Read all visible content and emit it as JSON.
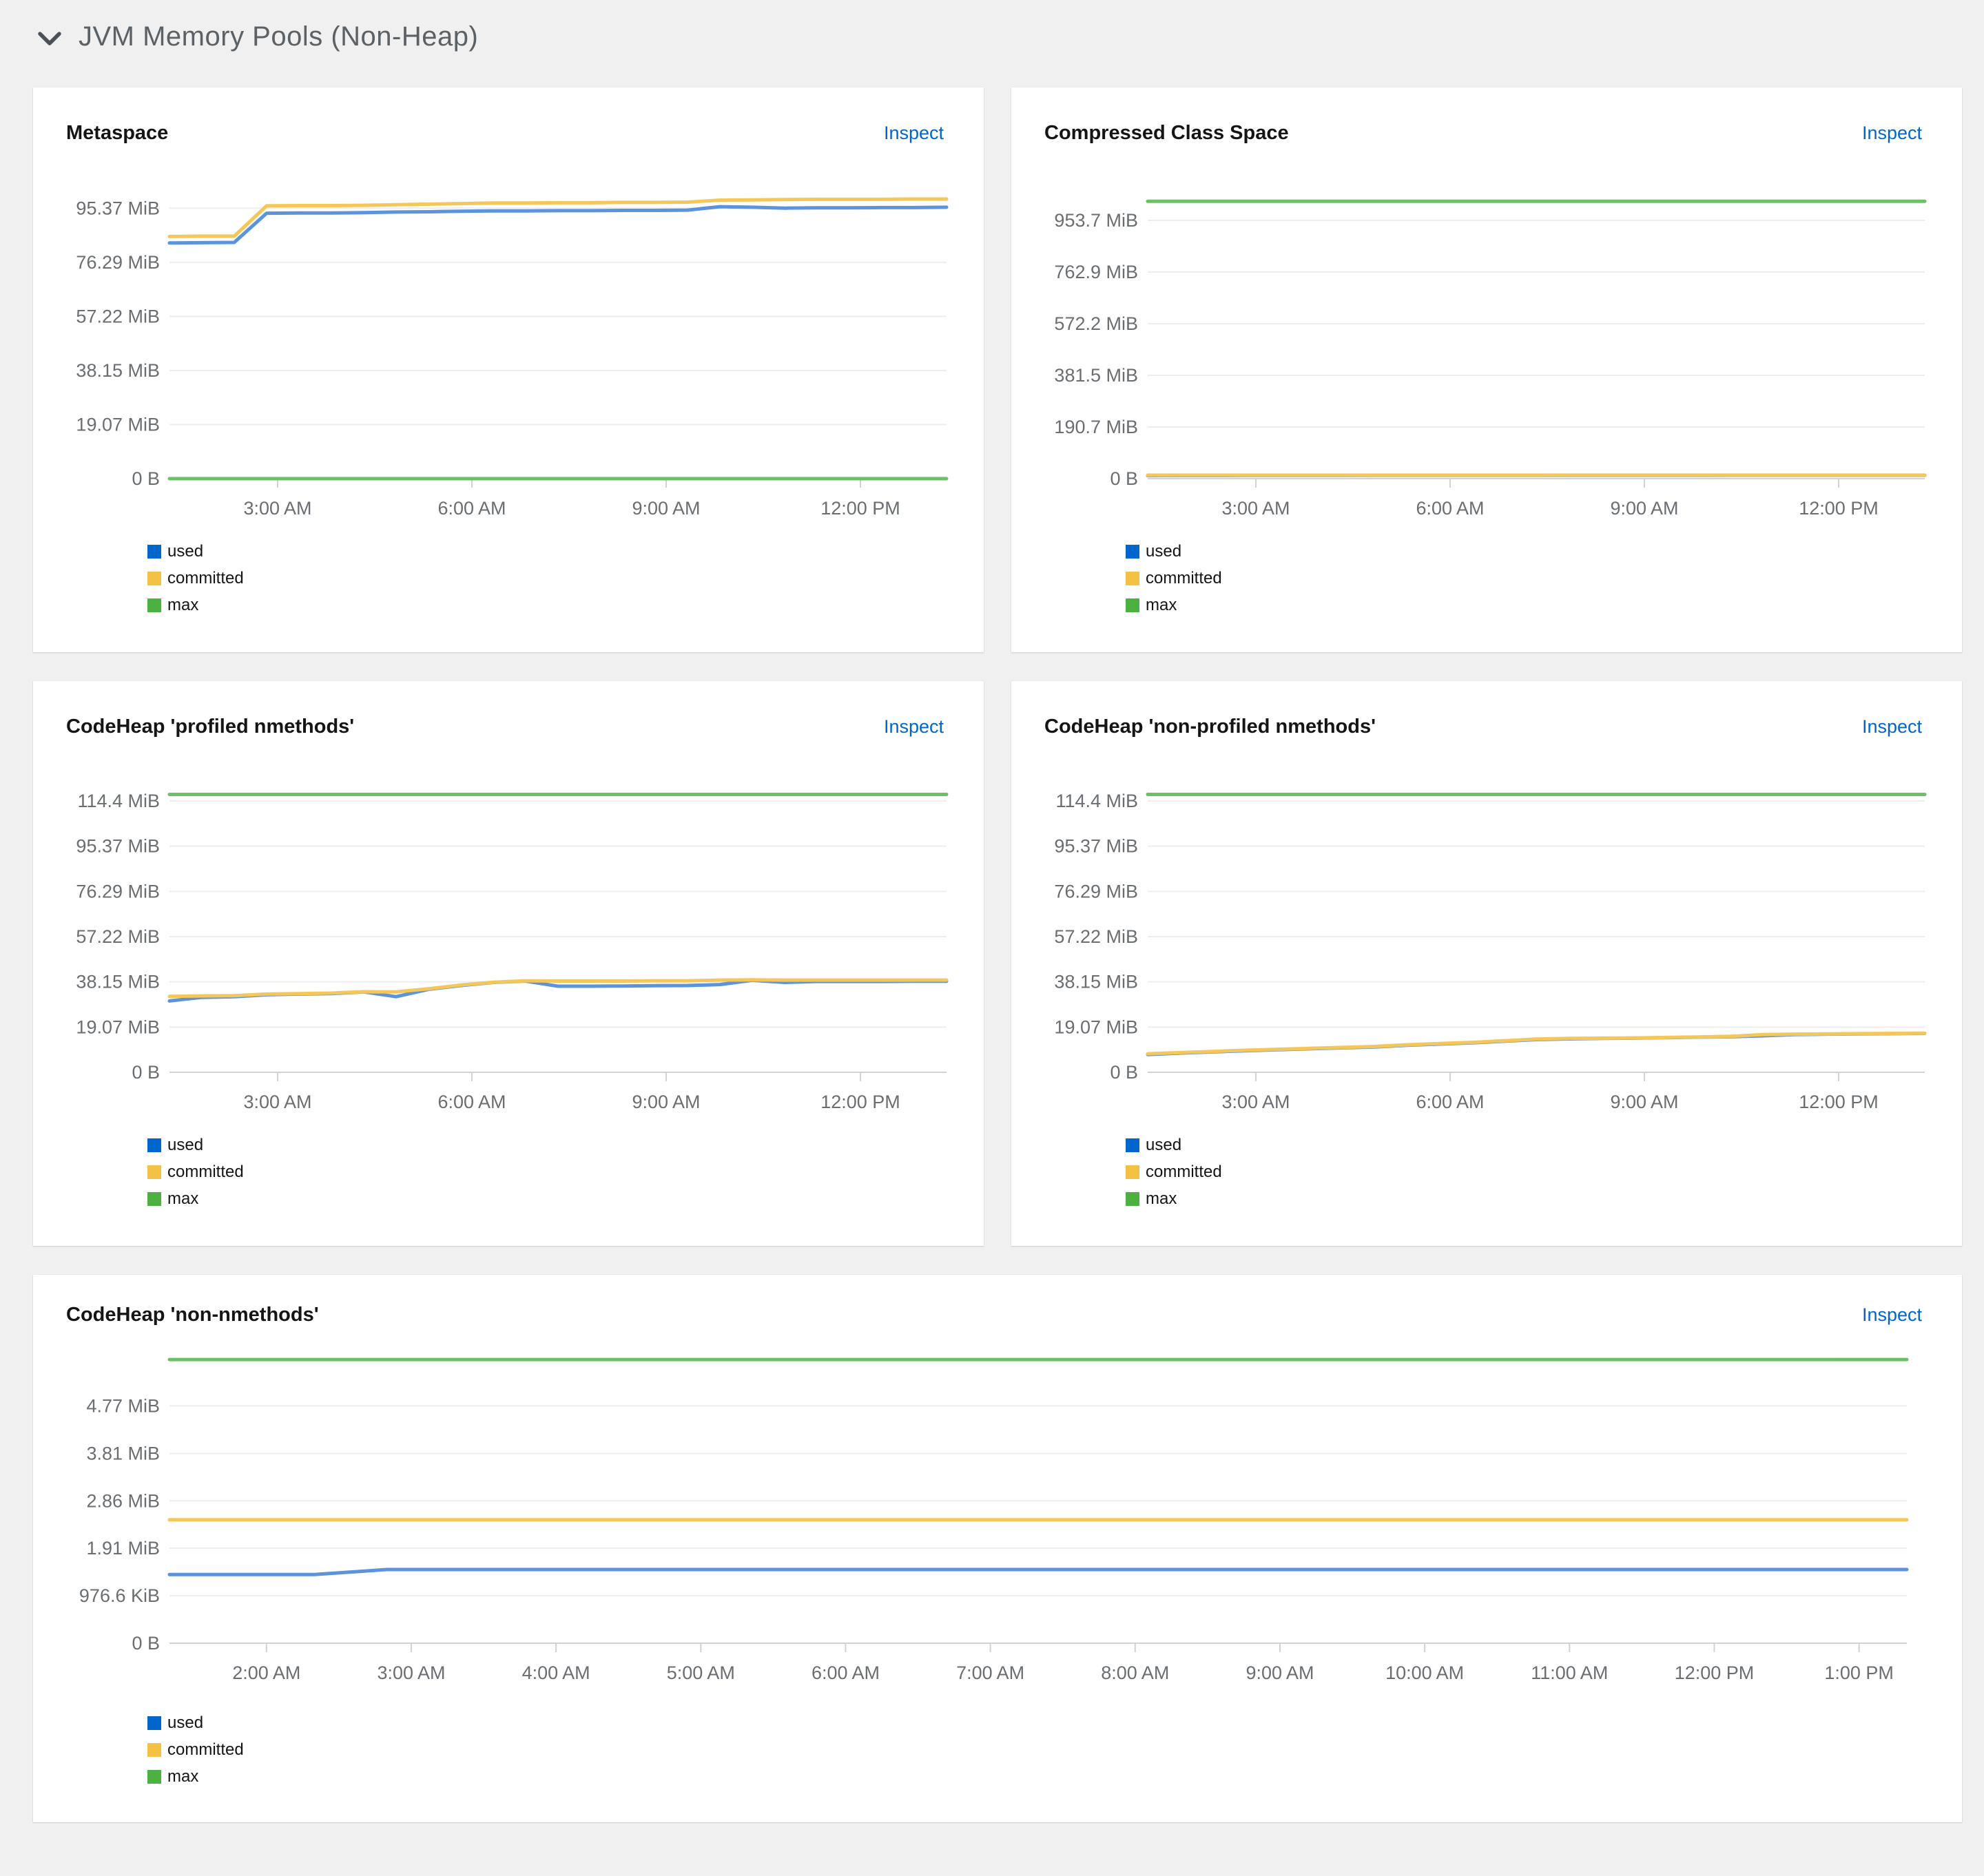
{
  "header": {
    "title": "JVM Memory Pools (Non-Heap)"
  },
  "inspect_label": "Inspect",
  "legend": [
    "used",
    "committed",
    "max"
  ],
  "colors": {
    "used_swatch": "#0066cc",
    "committed_swatch": "#f4c145",
    "max_swatch": "#4cb140",
    "used_line": "#5b93dd",
    "committed_line": "#f5c65a",
    "max_line": "#6cc067",
    "grid": "#ededed",
    "axis": "#d2d2d2",
    "axis_text": "#6a6e73",
    "link": "#0066cc"
  },
  "chart_data": [
    {
      "type": "line",
      "title": "Metaspace",
      "inspect_label": "Inspect",
      "unit": "MiB",
      "x_unit": "time-of-day hours",
      "x_range": [
        1.33,
        13.33
      ],
      "x_ticks": [
        {
          "label": "3:00 AM",
          "value": 3
        },
        {
          "label": "6:00 AM",
          "value": 6
        },
        {
          "label": "9:00 AM",
          "value": 9
        },
        {
          "label": "12:00 PM",
          "value": 12
        }
      ],
      "y_ticks": [
        {
          "label": "95.37 MiB",
          "value": 95.37
        },
        {
          "label": "76.29 MiB",
          "value": 76.29
        },
        {
          "label": "57.22 MiB",
          "value": 57.22
        },
        {
          "label": "38.15 MiB",
          "value": 38.15
        },
        {
          "label": "19.07 MiB",
          "value": 19.07
        },
        {
          "label": "0 B",
          "value": 0
        }
      ],
      "ymax": 102,
      "series": [
        {
          "name": "used",
          "values": [
            83.1,
            83.2,
            83.3,
            93.6,
            93.7,
            93.7,
            93.8,
            94.0,
            94.1,
            94.3,
            94.4,
            94.4,
            94.5,
            94.5,
            94.6,
            94.6,
            94.7,
            95.9,
            95.7,
            95.4,
            95.5,
            95.5,
            95.6,
            95.6,
            95.7
          ]
        },
        {
          "name": "committed",
          "values": [
            85.4,
            85.5,
            85.5,
            96.2,
            96.3,
            96.3,
            96.4,
            96.6,
            96.8,
            97.0,
            97.2,
            97.2,
            97.3,
            97.3,
            97.4,
            97.4,
            97.5,
            98.2,
            98.3,
            98.4,
            98.5,
            98.5,
            98.5,
            98.6,
            98.6
          ]
        },
        {
          "name": "max",
          "values": [
            0,
            0,
            0,
            0,
            0,
            0,
            0,
            0,
            0,
            0,
            0,
            0,
            0,
            0,
            0,
            0,
            0,
            0,
            0,
            0,
            0,
            0,
            0,
            0,
            0
          ]
        }
      ]
    },
    {
      "type": "line",
      "title": "Compressed Class Space",
      "inspect_label": "Inspect",
      "unit": "MiB",
      "x_unit": "time-of-day hours",
      "x_range": [
        1.33,
        13.33
      ],
      "x_ticks": [
        {
          "label": "3:00 AM",
          "value": 3
        },
        {
          "label": "6:00 AM",
          "value": 6
        },
        {
          "label": "9:00 AM",
          "value": 9
        },
        {
          "label": "12:00 PM",
          "value": 12
        }
      ],
      "y_ticks": [
        {
          "label": "953.7 MiB",
          "value": 953.7
        },
        {
          "label": "762.9 MiB",
          "value": 762.9
        },
        {
          "label": "572.2 MiB",
          "value": 572.2
        },
        {
          "label": "381.5 MiB",
          "value": 381.5
        },
        {
          "label": "190.7 MiB",
          "value": 190.7
        },
        {
          "label": "0 B",
          "value": 0
        }
      ],
      "ymax": 1068,
      "series": [
        {
          "name": "used",
          "values": [
            11.3,
            11.4,
            11.5,
            11.6,
            11.7,
            11.7,
            11.8,
            11.9,
            11.9,
            12.0,
            12.0,
            12.1,
            12.1,
            12.2,
            12.2,
            12.2,
            12.3,
            12.3,
            12.4,
            12.4,
            12.4,
            12.5,
            12.5,
            12.5,
            12.5
          ]
        },
        {
          "name": "committed",
          "values": [
            12.6,
            12.6,
            12.6,
            12.7,
            12.7,
            12.7,
            12.7,
            12.8,
            12.8,
            12.8,
            12.8,
            12.8,
            12.8,
            12.9,
            12.9,
            12.9,
            12.9,
            12.9,
            12.9,
            13.0,
            13.0,
            13.0,
            13.0,
            13.0,
            13.0
          ]
        },
        {
          "name": "max",
          "values": [
            1024,
            1024,
            1024,
            1024,
            1024,
            1024,
            1024,
            1024,
            1024,
            1024,
            1024,
            1024,
            1024,
            1024,
            1024,
            1024,
            1024,
            1024,
            1024,
            1024,
            1024,
            1024,
            1024,
            1024,
            1024
          ]
        }
      ]
    },
    {
      "type": "line",
      "title": "CodeHeap 'profiled nmethods'",
      "inspect_label": "Inspect",
      "unit": "MiB",
      "x_unit": "time-of-day hours",
      "x_range": [
        1.33,
        13.33
      ],
      "x_ticks": [
        {
          "label": "3:00 AM",
          "value": 3
        },
        {
          "label": "6:00 AM",
          "value": 6
        },
        {
          "label": "9:00 AM",
          "value": 9
        },
        {
          "label": "12:00 PM",
          "value": 12
        }
      ],
      "y_ticks": [
        {
          "label": "114.4 MiB",
          "value": 114.4
        },
        {
          "label": "95.37 MiB",
          "value": 95.37
        },
        {
          "label": "76.29 MiB",
          "value": 76.29
        },
        {
          "label": "57.22 MiB",
          "value": 57.22
        },
        {
          "label": "38.15 MiB",
          "value": 38.15
        },
        {
          "label": "19.07 MiB",
          "value": 19.07
        },
        {
          "label": "0 B",
          "value": 0
        }
      ],
      "ymax": 122,
      "series": [
        {
          "name": "used",
          "values": [
            30.1,
            31.6,
            31.9,
            32.7,
            33.0,
            33.2,
            33.9,
            31.9,
            35.0,
            36.6,
            37.9,
            38.5,
            36.3,
            36.3,
            36.4,
            36.5,
            36.6,
            37.0,
            38.8,
            37.9,
            38.3,
            38.3,
            38.3,
            38.4,
            38.4
          ]
        },
        {
          "name": "committed",
          "values": [
            32.0,
            32.2,
            32.3,
            33.0,
            33.2,
            33.4,
            34.0,
            33.9,
            35.2,
            36.8,
            38.0,
            38.6,
            38.5,
            38.5,
            38.5,
            38.6,
            38.6,
            38.9,
            39.0,
            38.9,
            38.9,
            38.9,
            38.9,
            38.9,
            38.9
          ]
        },
        {
          "name": "max",
          "values": [
            117.2,
            117.2,
            117.2,
            117.2,
            117.2,
            117.2,
            117.2,
            117.2,
            117.2,
            117.2,
            117.2,
            117.2,
            117.2,
            117.2,
            117.2,
            117.2,
            117.2,
            117.2,
            117.2,
            117.2,
            117.2,
            117.2,
            117.2,
            117.2,
            117.2
          ]
        }
      ]
    },
    {
      "type": "line",
      "title": "CodeHeap 'non-profiled nmethods'",
      "inspect_label": "Inspect",
      "unit": "MiB",
      "x_unit": "time-of-day hours",
      "x_range": [
        1.33,
        13.33
      ],
      "x_ticks": [
        {
          "label": "3:00 AM",
          "value": 3
        },
        {
          "label": "6:00 AM",
          "value": 6
        },
        {
          "label": "9:00 AM",
          "value": 9
        },
        {
          "label": "12:00 PM",
          "value": 12
        }
      ],
      "y_ticks": [
        {
          "label": "114.4 MiB",
          "value": 114.4
        },
        {
          "label": "95.37 MiB",
          "value": 95.37
        },
        {
          "label": "76.29 MiB",
          "value": 76.29
        },
        {
          "label": "57.22 MiB",
          "value": 57.22
        },
        {
          "label": "38.15 MiB",
          "value": 38.15
        },
        {
          "label": "19.07 MiB",
          "value": 19.07
        },
        {
          "label": "0 B",
          "value": 0
        }
      ],
      "ymax": 122,
      "series": [
        {
          "name": "used",
          "values": [
            7.5,
            8.1,
            8.6,
            9.1,
            9.5,
            9.9,
            10.3,
            10.7,
            11.4,
            11.9,
            12.4,
            13.1,
            13.8,
            14.1,
            14.3,
            14.4,
            14.6,
            14.8,
            15.0,
            15.4,
            15.9,
            16.1,
            16.2,
            16.3,
            16.4
          ]
        },
        {
          "name": "committed",
          "values": [
            7.8,
            8.3,
            8.8,
            9.3,
            9.7,
            10.1,
            10.5,
            10.9,
            11.6,
            12.1,
            12.6,
            13.3,
            14.0,
            14.3,
            14.4,
            14.5,
            14.7,
            14.9,
            15.2,
            15.9,
            16.1,
            16.2,
            16.3,
            16.4,
            16.5
          ]
        },
        {
          "name": "max",
          "values": [
            117.2,
            117.2,
            117.2,
            117.2,
            117.2,
            117.2,
            117.2,
            117.2,
            117.2,
            117.2,
            117.2,
            117.2,
            117.2,
            117.2,
            117.2,
            117.2,
            117.2,
            117.2,
            117.2,
            117.2,
            117.2,
            117.2,
            117.2,
            117.2,
            117.2
          ]
        }
      ]
    },
    {
      "type": "line",
      "title": "CodeHeap 'non-nmethods'",
      "inspect_label": "Inspect",
      "unit": "MiB",
      "x_unit": "time-of-day hours",
      "x_range": [
        1.33,
        13.33
      ],
      "x_ticks": [
        {
          "label": "2:00 AM",
          "value": 2
        },
        {
          "label": "3:00 AM",
          "value": 3
        },
        {
          "label": "4:00 AM",
          "value": 4
        },
        {
          "label": "5:00 AM",
          "value": 5
        },
        {
          "label": "6:00 AM",
          "value": 6
        },
        {
          "label": "7:00 AM",
          "value": 7
        },
        {
          "label": "8:00 AM",
          "value": 8
        },
        {
          "label": "9:00 AM",
          "value": 9
        },
        {
          "label": "10:00 AM",
          "value": 10
        },
        {
          "label": "11:00 AM",
          "value": 11
        },
        {
          "label": "12:00 PM",
          "value": 12
        },
        {
          "label": "1:00 PM",
          "value": 13
        }
      ],
      "y_ticks": [
        {
          "label": "4.77 MiB",
          "value": 4.77
        },
        {
          "label": "3.81 MiB",
          "value": 3.81
        },
        {
          "label": "2.86 MiB",
          "value": 2.86
        },
        {
          "label": "1.91 MiB",
          "value": 1.91
        },
        {
          "label": "976.6 KiB",
          "value": 0.9537
        },
        {
          "label": "0 B",
          "value": 0
        }
      ],
      "ymax": 5.95,
      "series": [
        {
          "name": "used",
          "values": [
            1.38,
            1.38,
            1.38,
            1.48,
            1.48,
            1.48,
            1.48,
            1.48,
            1.48,
            1.48,
            1.48,
            1.48,
            1.48,
            1.48,
            1.48,
            1.48,
            1.48,
            1.48,
            1.48,
            1.48,
            1.48,
            1.48,
            1.48,
            1.48,
            1.48
          ]
        },
        {
          "name": "committed",
          "values": [
            2.48,
            2.48,
            2.48,
            2.48,
            2.48,
            2.48,
            2.48,
            2.48,
            2.48,
            2.48,
            2.48,
            2.48,
            2.48,
            2.48,
            2.48,
            2.48,
            2.48,
            2.48,
            2.48,
            2.48,
            2.48,
            2.48,
            2.48,
            2.48,
            2.48
          ]
        },
        {
          "name": "max",
          "values": [
            5.7,
            5.7,
            5.7,
            5.7,
            5.7,
            5.7,
            5.7,
            5.7,
            5.7,
            5.7,
            5.7,
            5.7,
            5.7,
            5.7,
            5.7,
            5.7,
            5.7,
            5.7,
            5.7,
            5.7,
            5.7,
            5.7,
            5.7,
            5.7,
            5.7
          ]
        }
      ]
    }
  ]
}
